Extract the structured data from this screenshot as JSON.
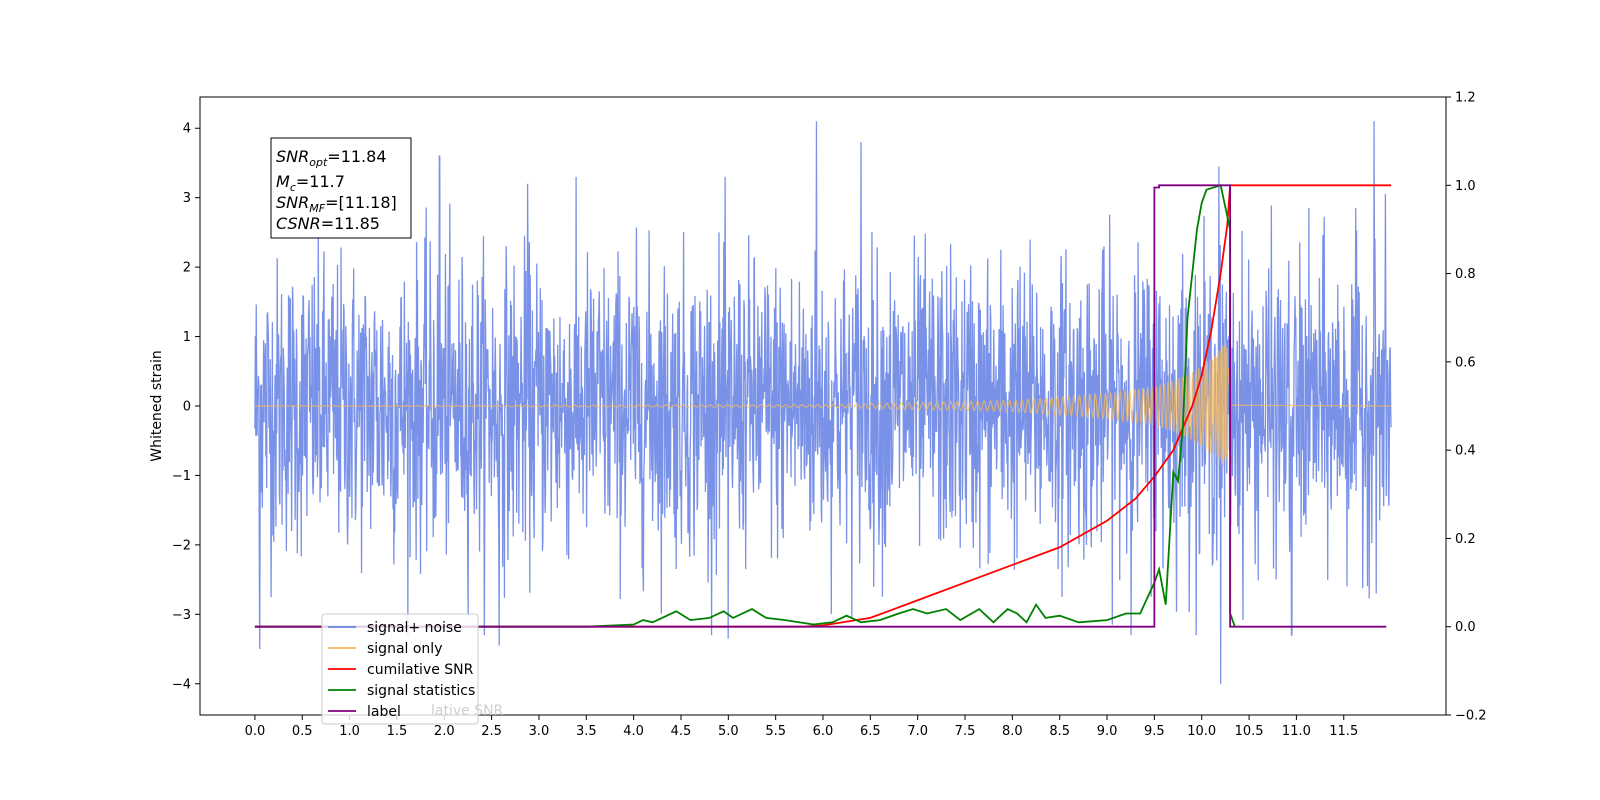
{
  "chart_data": {
    "type": "line",
    "ylabel": "Whitened strain",
    "xlabel": "",
    "x_ticks": [
      "0.0",
      "0.5",
      "1.0",
      "1.5",
      "2.0",
      "2.5",
      "3.0",
      "3.5",
      "4.0",
      "4.5",
      "5.0",
      "5.5",
      "6.0",
      "6.5",
      "7.0",
      "7.5",
      "8.0",
      "8.5",
      "9.0",
      "9.5",
      "10.0",
      "10.5",
      "11.0",
      "11.5"
    ],
    "x_tick_values": [
      0,
      0.5,
      1,
      1.5,
      2,
      2.5,
      3,
      3.5,
      4,
      4.5,
      5,
      5.5,
      6,
      6.5,
      7,
      7.5,
      8,
      8.5,
      9,
      9.5,
      10,
      10.5,
      11,
      11.5
    ],
    "xlim": [
      -0.58,
      12.58
    ],
    "ylim_left": [
      -4.45,
      4.45
    ],
    "y_left_ticks": [
      "−4",
      "−3",
      "−2",
      "−1",
      "0",
      "1",
      "2",
      "3",
      "4"
    ],
    "y_left_tick_values": [
      -4,
      -3,
      -2,
      -1,
      0,
      1,
      2,
      3,
      4
    ],
    "ylim_right": [
      -0.2,
      1.2
    ],
    "y_right_ticks": [
      "−0.2",
      "0.0",
      "0.2",
      "0.4",
      "0.6",
      "0.8",
      "1.0",
      "1.2"
    ],
    "y_right_tick_values": [
      -0.2,
      0,
      0.2,
      0.4,
      0.6,
      0.8,
      1.0,
      1.2
    ],
    "legend_placement": "lower-left",
    "annotation": {
      "snr_opt": "=11.84",
      "mc": "=11.7",
      "snr_mf": "=[11.18]",
      "csnr": "=11.85"
    },
    "series": [
      {
        "name": "signal+ noise",
        "axis": "left",
        "color": "#6a86e6",
        "x_range": [
          0,
          12
        ],
        "noise_std": 1.0,
        "peaks": [
          [
            0.05,
            -3.5
          ],
          [
            5.93,
            4.1
          ],
          [
            6.4,
            3.8
          ],
          [
            10.2,
            -4.0
          ],
          [
            11.82,
            4.1
          ],
          [
            2.58,
            -3.45
          ],
          [
            5.0,
            -3.35
          ],
          [
            10.95,
            -3.3
          ],
          [
            1.95,
            3.6
          ],
          [
            2.88,
            3.2
          ],
          [
            10.18,
            3.45
          ]
        ]
      },
      {
        "name": "signal only",
        "axis": "left",
        "color": "#f5b85c",
        "chirp_end": 10.28,
        "envelope": [
          [
            0,
            0.0
          ],
          [
            6,
            0.02
          ],
          [
            7,
            0.05
          ],
          [
            8,
            0.08
          ],
          [
            9,
            0.18
          ],
          [
            9.5,
            0.28
          ],
          [
            9.8,
            0.42
          ],
          [
            10.0,
            0.58
          ],
          [
            10.15,
            0.75
          ],
          [
            10.28,
            0.95
          ],
          [
            10.3,
            0.02
          ],
          [
            12,
            0.0
          ]
        ]
      },
      {
        "name": "cumilative SNR",
        "axis": "right",
        "color": "#ff0000",
        "points": [
          [
            0,
            0
          ],
          [
            5.8,
            0
          ],
          [
            6.0,
            0.003
          ],
          [
            6.5,
            0.02
          ],
          [
            7.0,
            0.06
          ],
          [
            7.5,
            0.1
          ],
          [
            8.0,
            0.14
          ],
          [
            8.5,
            0.18
          ],
          [
            9.0,
            0.24
          ],
          [
            9.3,
            0.29
          ],
          [
            9.5,
            0.34
          ],
          [
            9.7,
            0.4
          ],
          [
            9.9,
            0.5
          ],
          [
            10.0,
            0.57
          ],
          [
            10.1,
            0.67
          ],
          [
            10.2,
            0.8
          ],
          [
            10.27,
            0.91
          ],
          [
            10.3,
            1.0
          ],
          [
            12,
            1.0
          ]
        ]
      },
      {
        "name": "signal statistics",
        "axis": "right",
        "color": "#008000",
        "points": [
          [
            0,
            0
          ],
          [
            3.5,
            0.0
          ],
          [
            4.0,
            0.005
          ],
          [
            4.1,
            0.015
          ],
          [
            4.2,
            0.01
          ],
          [
            4.3,
            0.02
          ],
          [
            4.45,
            0.035
          ],
          [
            4.6,
            0.015
          ],
          [
            4.8,
            0.02
          ],
          [
            4.95,
            0.035
          ],
          [
            5.05,
            0.02
          ],
          [
            5.25,
            0.04
          ],
          [
            5.4,
            0.02
          ],
          [
            5.6,
            0.015
          ],
          [
            5.9,
            0.005
          ],
          [
            6.1,
            0.01
          ],
          [
            6.25,
            0.025
          ],
          [
            6.4,
            0.01
          ],
          [
            6.6,
            0.015
          ],
          [
            6.8,
            0.03
          ],
          [
            6.95,
            0.04
          ],
          [
            7.1,
            0.03
          ],
          [
            7.3,
            0.04
          ],
          [
            7.45,
            0.015
          ],
          [
            7.65,
            0.04
          ],
          [
            7.8,
            0.01
          ],
          [
            7.95,
            0.04
          ],
          [
            8.05,
            0.03
          ],
          [
            8.15,
            0.01
          ],
          [
            8.25,
            0.05
          ],
          [
            8.35,
            0.02
          ],
          [
            8.5,
            0.025
          ],
          [
            8.7,
            0.01
          ],
          [
            9.0,
            0.015
          ],
          [
            9.2,
            0.03
          ],
          [
            9.35,
            0.03
          ],
          [
            9.5,
            0.1
          ],
          [
            9.55,
            0.13
          ],
          [
            9.62,
            0.05
          ],
          [
            9.7,
            0.35
          ],
          [
            9.75,
            0.33
          ],
          [
            9.8,
            0.45
          ],
          [
            9.85,
            0.7
          ],
          [
            9.95,
            0.9
          ],
          [
            10.0,
            0.96
          ],
          [
            10.05,
            0.99
          ],
          [
            10.2,
            1.0
          ],
          [
            10.3,
            0.9
          ],
          [
            10.3,
            0.03
          ],
          [
            10.35,
            0.0
          ]
        ]
      },
      {
        "name": "label",
        "axis": "right",
        "color": "#800080",
        "points": [
          [
            0,
            0
          ],
          [
            9.5,
            0
          ],
          [
            9.5,
            0.995
          ],
          [
            9.55,
            0.995
          ],
          [
            9.55,
            1.0
          ],
          [
            10.27,
            1.0
          ],
          [
            10.3,
            1.0
          ],
          [
            10.3,
            0
          ],
          [
            11.95,
            0
          ]
        ]
      }
    ],
    "legend": [
      "signal+ noise",
      "signal only",
      "cumilative SNR",
      "signal statistics",
      "label"
    ],
    "legend_ghost_text": "lative SNR"
  }
}
